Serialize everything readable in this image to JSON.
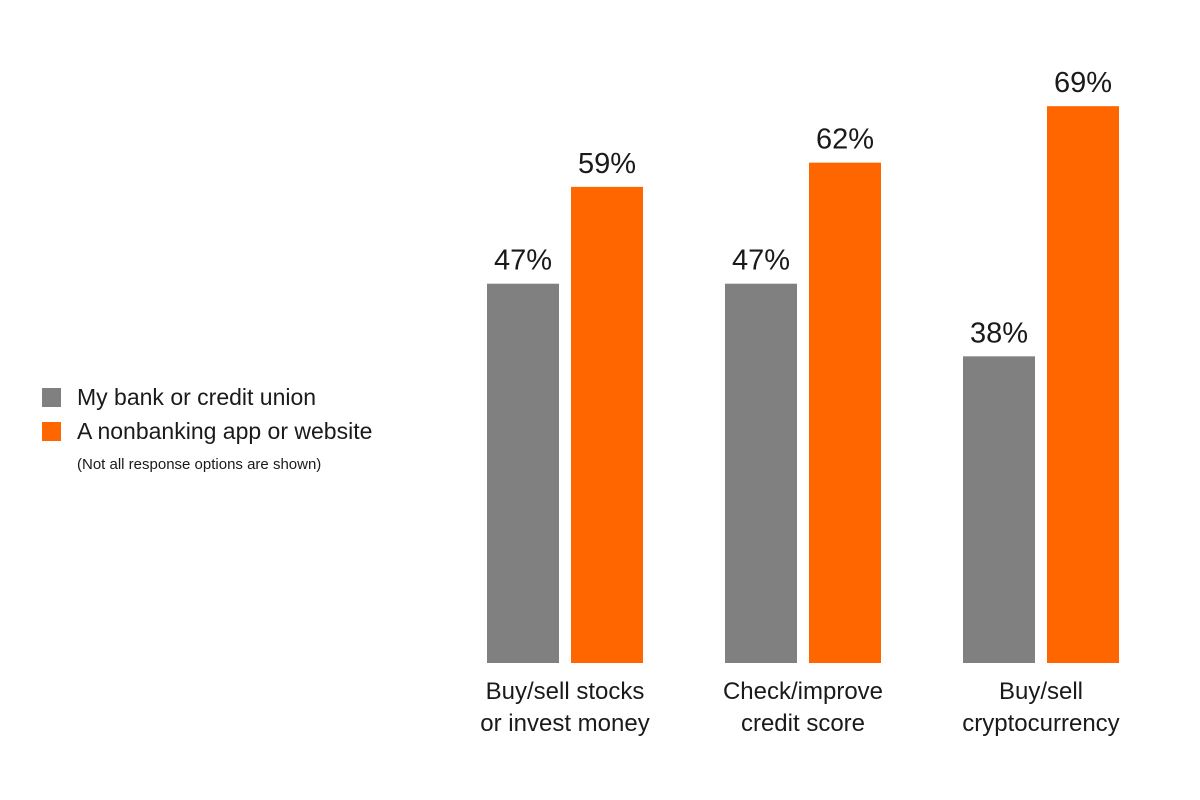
{
  "colors": {
    "bank": "#808080",
    "nonbank": "#ff6600",
    "text": "#1a1a1a"
  },
  "legend": {
    "note": "(Not all response options are shown)"
  },
  "chart_data": {
    "type": "bar",
    "title": "",
    "xlabel": "",
    "ylabel": "",
    "ylim": [
      0,
      69
    ],
    "grid": false,
    "legend_position": "left",
    "value_suffix": "%",
    "categories": [
      [
        "Buy/sell stocks",
        "or invest money"
      ],
      [
        "Check/improve",
        "credit score"
      ],
      [
        "Buy/sell",
        "cryptocurrency"
      ]
    ],
    "series": [
      {
        "name": "My bank or credit union",
        "color": "#808080",
        "values": [
          47,
          47,
          38
        ]
      },
      {
        "name": "A nonbanking app or website",
        "color": "#ff6600",
        "values": [
          59,
          62,
          69
        ]
      }
    ]
  }
}
